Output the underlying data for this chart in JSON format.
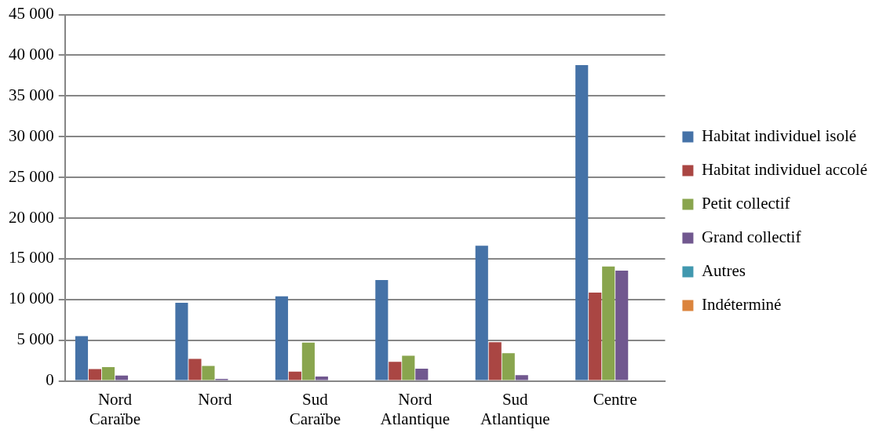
{
  "chart_data": {
    "type": "bar",
    "categories": [
      "Nord Caraïbe",
      "Nord",
      "Sud Caraïbe",
      "Nord Atlantique",
      "Sud Atlantique",
      "Centre"
    ],
    "series": [
      {
        "name": "Habitat individuel isolé",
        "color": "#4572a7",
        "values": [
          5500,
          9600,
          10400,
          12400,
          16600,
          38800
        ]
      },
      {
        "name": "Habitat individuel accolé",
        "color": "#aa4643",
        "values": [
          1450,
          2700,
          1150,
          2350,
          4750,
          10850
        ]
      },
      {
        "name": "Petit collectif",
        "color": "#89a54e",
        "values": [
          1700,
          1850,
          4700,
          3100,
          3400,
          14050
        ]
      },
      {
        "name": "Grand collectif",
        "color": "#71588f",
        "values": [
          650,
          250,
          550,
          1500,
          700,
          13550
        ]
      },
      {
        "name": "Autres",
        "color": "#4198af",
        "values": [
          0,
          0,
          0,
          0,
          0,
          100
        ]
      },
      {
        "name": "Indéterminé",
        "color": "#db843d",
        "values": [
          0,
          0,
          0,
          0,
          0,
          0
        ]
      }
    ],
    "ylim": [
      0,
      45000
    ],
    "yticks": [
      {
        "value": 0,
        "label": "0"
      },
      {
        "value": 5000,
        "label": "5 000"
      },
      {
        "value": 10000,
        "label": "10 000"
      },
      {
        "value": 15000,
        "label": "15 000"
      },
      {
        "value": 20000,
        "label": "20 000"
      },
      {
        "value": 25000,
        "label": "25 000"
      },
      {
        "value": 30000,
        "label": "30 000"
      },
      {
        "value": 35000,
        "label": "35 000"
      },
      {
        "value": 40000,
        "label": "40 000"
      },
      {
        "value": 45000,
        "label": "45 000"
      }
    ],
    "grid": "y",
    "legend": "right"
  }
}
